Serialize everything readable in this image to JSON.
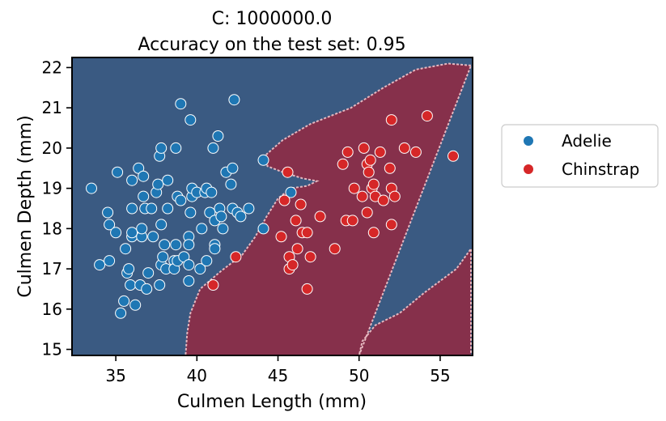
{
  "chart_data": {
    "type": "scatter",
    "title_line1": "C: 1000000.0",
    "title_line2": "Accuracy on the test set: 0.95",
    "xlabel": "Culmen Length (mm)",
    "ylabel": "Culmen Depth (mm)",
    "xlim": [
      32.3,
      57.0
    ],
    "ylim": [
      14.85,
      22.25
    ],
    "xticks": [
      35,
      40,
      45,
      50,
      55
    ],
    "xtick_labels": [
      "35",
      "40",
      "45",
      "50",
      "55"
    ],
    "yticks": [
      15,
      16,
      17,
      18,
      19,
      20,
      21,
      22
    ],
    "ytick_labels": [
      "15",
      "16",
      "17",
      "18",
      "19",
      "20",
      "21",
      "22"
    ],
    "grid": false,
    "legend_position": "outside-right",
    "background": "decision-regions",
    "colors": {
      "adelie": "#1f77b4",
      "chinstrap": "#d62728",
      "adelie_region": "#3a5a82",
      "chinstrap_region": "#86304b"
    },
    "legend": [
      "Adelie",
      "Chinstrap"
    ],
    "series": [
      {
        "name": "Adelie",
        "points": [
          [
            33.5,
            19.0
          ],
          [
            34.0,
            17.1
          ],
          [
            34.5,
            18.4
          ],
          [
            34.6,
            18.1
          ],
          [
            34.6,
            17.2
          ],
          [
            35.0,
            17.9
          ],
          [
            35.1,
            19.4
          ],
          [
            35.3,
            15.9
          ],
          [
            35.5,
            16.2
          ],
          [
            35.6,
            17.5
          ],
          [
            35.7,
            16.9
          ],
          [
            35.8,
            17.0
          ],
          [
            35.9,
            16.6
          ],
          [
            36.0,
            17.8
          ],
          [
            36.0,
            17.9
          ],
          [
            36.0,
            19.2
          ],
          [
            36.0,
            18.5
          ],
          [
            36.2,
            16.1
          ],
          [
            36.4,
            19.5
          ],
          [
            36.5,
            16.6
          ],
          [
            36.6,
            17.8
          ],
          [
            36.6,
            18.0
          ],
          [
            36.7,
            18.8
          ],
          [
            36.7,
            19.3
          ],
          [
            36.8,
            18.5
          ],
          [
            36.9,
            16.5
          ],
          [
            37.0,
            16.9
          ],
          [
            37.2,
            18.5
          ],
          [
            37.3,
            17.8
          ],
          [
            37.5,
            18.9
          ],
          [
            37.6,
            19.1
          ],
          [
            37.7,
            16.6
          ],
          [
            37.7,
            19.8
          ],
          [
            37.8,
            17.1
          ],
          [
            37.8,
            20.0
          ],
          [
            37.8,
            18.1
          ],
          [
            37.9,
            17.3
          ],
          [
            38.0,
            17.6
          ],
          [
            38.1,
            17.0
          ],
          [
            38.2,
            18.5
          ],
          [
            38.2,
            19.2
          ],
          [
            38.6,
            17.2
          ],
          [
            38.6,
            17.0
          ],
          [
            38.7,
            17.6
          ],
          [
            38.7,
            20.0
          ],
          [
            38.8,
            18.8
          ],
          [
            38.8,
            17.2
          ],
          [
            39.0,
            18.7
          ],
          [
            39.0,
            21.1
          ],
          [
            39.2,
            17.3
          ],
          [
            39.5,
            16.7
          ],
          [
            39.5,
            17.8
          ],
          [
            39.5,
            17.1
          ],
          [
            39.5,
            17.6
          ],
          [
            39.6,
            20.7
          ],
          [
            39.6,
            18.4
          ],
          [
            39.7,
            18.8
          ],
          [
            39.7,
            19.0
          ],
          [
            40.0,
            18.9
          ],
          [
            40.2,
            17.0
          ],
          [
            40.3,
            18.0
          ],
          [
            40.5,
            18.9
          ],
          [
            40.6,
            19.0
          ],
          [
            40.6,
            17.2
          ],
          [
            40.8,
            18.4
          ],
          [
            40.9,
            18.9
          ],
          [
            41.0,
            20.0
          ],
          [
            41.1,
            18.2
          ],
          [
            41.1,
            17.6
          ],
          [
            41.1,
            17.5
          ],
          [
            41.3,
            20.3
          ],
          [
            41.4,
            18.5
          ],
          [
            41.5,
            18.3
          ],
          [
            41.6,
            18.0
          ],
          [
            41.8,
            19.4
          ],
          [
            42.1,
            19.1
          ],
          [
            42.2,
            18.5
          ],
          [
            42.2,
            19.5
          ],
          [
            42.3,
            21.2
          ],
          [
            42.5,
            18.4
          ],
          [
            42.7,
            18.3
          ],
          [
            43.2,
            18.5
          ],
          [
            44.1,
            18.0
          ],
          [
            44.1,
            19.7
          ],
          [
            45.8,
            18.9
          ]
        ]
      },
      {
        "name": "Chinstrap",
        "points": [
          [
            41.0,
            16.6
          ],
          [
            42.4,
            17.3
          ],
          [
            45.2,
            17.8
          ],
          [
            45.4,
            18.7
          ],
          [
            45.6,
            19.4
          ],
          [
            45.7,
            17.3
          ],
          [
            45.7,
            17.0
          ],
          [
            45.9,
            17.1
          ],
          [
            46.1,
            18.2
          ],
          [
            46.2,
            17.5
          ],
          [
            46.4,
            18.6
          ],
          [
            46.5,
            17.9
          ],
          [
            46.8,
            17.9
          ],
          [
            46.8,
            16.5
          ],
          [
            47.0,
            17.3
          ],
          [
            47.6,
            18.3
          ],
          [
            48.5,
            17.5
          ],
          [
            49.0,
            19.6
          ],
          [
            49.2,
            18.2
          ],
          [
            49.3,
            19.9
          ],
          [
            49.6,
            18.2
          ],
          [
            49.7,
            19.0
          ],
          [
            50.2,
            18.8
          ],
          [
            50.3,
            20.0
          ],
          [
            50.5,
            19.6
          ],
          [
            50.5,
            18.4
          ],
          [
            50.6,
            19.4
          ],
          [
            50.7,
            19.7
          ],
          [
            50.8,
            19.0
          ],
          [
            50.9,
            19.1
          ],
          [
            50.9,
            17.9
          ],
          [
            51.0,
            18.8
          ],
          [
            51.3,
            19.9
          ],
          [
            51.5,
            18.7
          ],
          [
            51.9,
            19.5
          ],
          [
            52.0,
            20.7
          ],
          [
            52.0,
            19.0
          ],
          [
            52.0,
            18.1
          ],
          [
            52.2,
            18.8
          ],
          [
            52.8,
            20.0
          ],
          [
            53.5,
            19.9
          ],
          [
            54.2,
            20.8
          ],
          [
            55.8,
            19.8
          ]
        ]
      }
    ],
    "chinstrap_region_boundary": [
      [
        56.9,
        22.05
      ],
      [
        55.5,
        22.1
      ],
      [
        53.5,
        21.95
      ],
      [
        51.5,
        21.5
      ],
      [
        49.5,
        21.0
      ],
      [
        47.0,
        20.6
      ],
      [
        45.3,
        20.2
      ],
      [
        44.3,
        19.85
      ],
      [
        44.35,
        19.55
      ],
      [
        45.3,
        19.4
      ],
      [
        46.5,
        19.25
      ],
      [
        47.4,
        19.18
      ],
      [
        46.8,
        19.06
      ],
      [
        45.8,
        19.0
      ],
      [
        45.0,
        18.75
      ],
      [
        44.3,
        18.3
      ],
      [
        43.6,
        17.8
      ],
      [
        42.8,
        17.35
      ],
      [
        41.5,
        16.95
      ],
      [
        40.2,
        16.5
      ],
      [
        39.6,
        15.9
      ],
      [
        39.4,
        15.4
      ],
      [
        39.3,
        14.85
      ],
      [
        56.9,
        14.85
      ],
      [
        56.9,
        17.5
      ],
      [
        56.0,
        17.0
      ],
      [
        54.0,
        16.4
      ],
      [
        52.5,
        15.9
      ],
      [
        51.0,
        15.6
      ],
      [
        50.2,
        15.2
      ],
      [
        50.0,
        14.85
      ]
    ]
  }
}
